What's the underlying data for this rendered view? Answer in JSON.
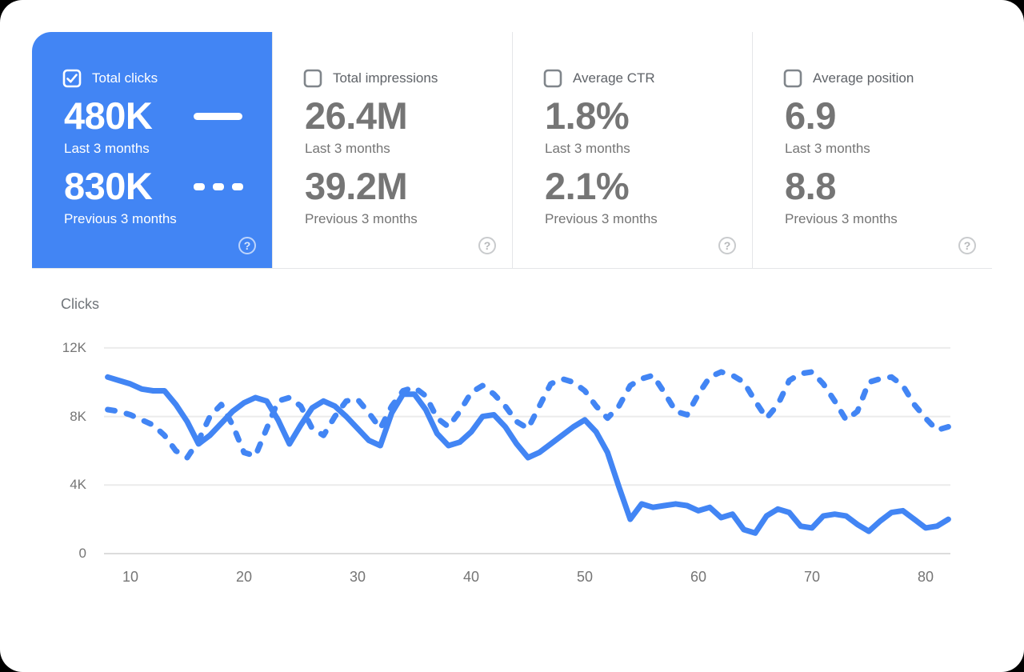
{
  "colors": {
    "accent_blue": "#4285f4",
    "value_gray": "#757575",
    "label_gray": "#5f6368",
    "gridline": "#ebebeb",
    "divider": "#e4e6e8"
  },
  "icons": {
    "help_glyph": "?"
  },
  "metric_cards": [
    {
      "label": "Total clicks",
      "checked": true,
      "selected": true,
      "value_last": "480K",
      "caption_last": "Last 3 months",
      "value_previous": "830K",
      "caption_previous": "Previous 3 months"
    },
    {
      "label": "Total impressions",
      "checked": false,
      "selected": false,
      "value_last": "26.4M",
      "caption_last": "Last 3 months",
      "value_previous": "39.2M",
      "caption_previous": "Previous 3 months"
    },
    {
      "label": "Average CTR",
      "checked": false,
      "selected": false,
      "value_last": "1.8%",
      "caption_last": "Last 3 months",
      "value_previous": "2.1%",
      "caption_previous": "Previous 3 months"
    },
    {
      "label": "Average position",
      "checked": false,
      "selected": false,
      "value_last": "6.9",
      "caption_last": "Last 3 months",
      "value_previous": "8.8",
      "caption_previous": "Previous 3 months"
    }
  ],
  "chart": {
    "ylabel": "Clicks"
  },
  "chart_data": {
    "type": "line",
    "title": "",
    "xlabel": "",
    "ylabel": "Clicks",
    "ylim": [
      0,
      12400
    ],
    "grid": "horizontal",
    "legend_position": "card-indicators (solid = Last 3 months, dashed = Previous 3 months)",
    "x_ticks": [
      {
        "label": "10",
        "value": 10
      },
      {
        "label": "20",
        "value": 20
      },
      {
        "label": "30",
        "value": 30
      },
      {
        "label": "40",
        "value": 40
      },
      {
        "label": "50",
        "value": 50
      },
      {
        "label": "60",
        "value": 60
      },
      {
        "label": "70",
        "value": 70
      },
      {
        "label": "80",
        "value": 80
      }
    ],
    "y_ticks": [
      {
        "label": "12K",
        "value": 12000
      },
      {
        "label": "8K",
        "value": 8000
      },
      {
        "label": "4K",
        "value": 4000
      },
      {
        "label": "0",
        "value": 0
      }
    ],
    "x": [
      8,
      9,
      10,
      11,
      12,
      13,
      14,
      15,
      16,
      17,
      18,
      19,
      20,
      21,
      22,
      23,
      24,
      25,
      26,
      27,
      28,
      29,
      30,
      31,
      32,
      33,
      34,
      35,
      36,
      37,
      38,
      39,
      40,
      41,
      42,
      43,
      44,
      45,
      46,
      47,
      48,
      49,
      50,
      51,
      52,
      53,
      54,
      55,
      56,
      57,
      58,
      59,
      60,
      61,
      62,
      63,
      64,
      65,
      66,
      67,
      68,
      69,
      70,
      71,
      72,
      73,
      74,
      75,
      76,
      77,
      78,
      79,
      80,
      81,
      82
    ],
    "series": [
      {
        "name": "Total clicks — Last 3 months",
        "style": "solid",
        "color": "#4285f4",
        "values": [
          10300,
          10100,
          9900,
          9600,
          9500,
          9500,
          8700,
          7700,
          6400,
          6900,
          7600,
          8300,
          8800,
          9100,
          8900,
          7800,
          6400,
          7500,
          8500,
          8900,
          8600,
          8000,
          7300,
          6600,
          6300,
          8200,
          9300,
          9300,
          8400,
          7000,
          6300,
          6500,
          7100,
          8000,
          8100,
          7400,
          6400,
          5600,
          5900,
          6400,
          6900,
          7400,
          7800,
          7100,
          5900,
          3900,
          2000,
          2900,
          2700,
          2800,
          2900,
          2800,
          2500,
          2700,
          2100,
          2300,
          1400,
          1200,
          2200,
          2600,
          2400,
          1600,
          1500,
          2200,
          2300,
          2200,
          1700,
          1300,
          1900,
          2400,
          2500,
          2000,
          1500,
          1600,
          2000
        ]
      },
      {
        "name": "Total clicks — Previous 3 months",
        "style": "dashed",
        "color": "#4285f4",
        "values": [
          8400,
          8300,
          8100,
          7800,
          7500,
          6900,
          6000,
          5600,
          6600,
          8000,
          8700,
          7500,
          5900,
          5700,
          7300,
          8900,
          9100,
          8600,
          7300,
          6900,
          8000,
          8900,
          9000,
          8200,
          7300,
          8600,
          9500,
          9700,
          9200,
          7900,
          7400,
          8300,
          9400,
          9800,
          9300,
          8600,
          7700,
          7300,
          8600,
          9900,
          10200,
          10000,
          9500,
          8600,
          7900,
          8600,
          9800,
          10200,
          10400,
          9400,
          8300,
          8100,
          9300,
          10300,
          10600,
          10400,
          10000,
          8900,
          7900,
          8700,
          10100,
          10500,
          10600,
          9900,
          8900,
          7800,
          8300,
          10000,
          10200,
          10300,
          9800,
          8700,
          7900,
          7200,
          7400
        ]
      }
    ]
  }
}
